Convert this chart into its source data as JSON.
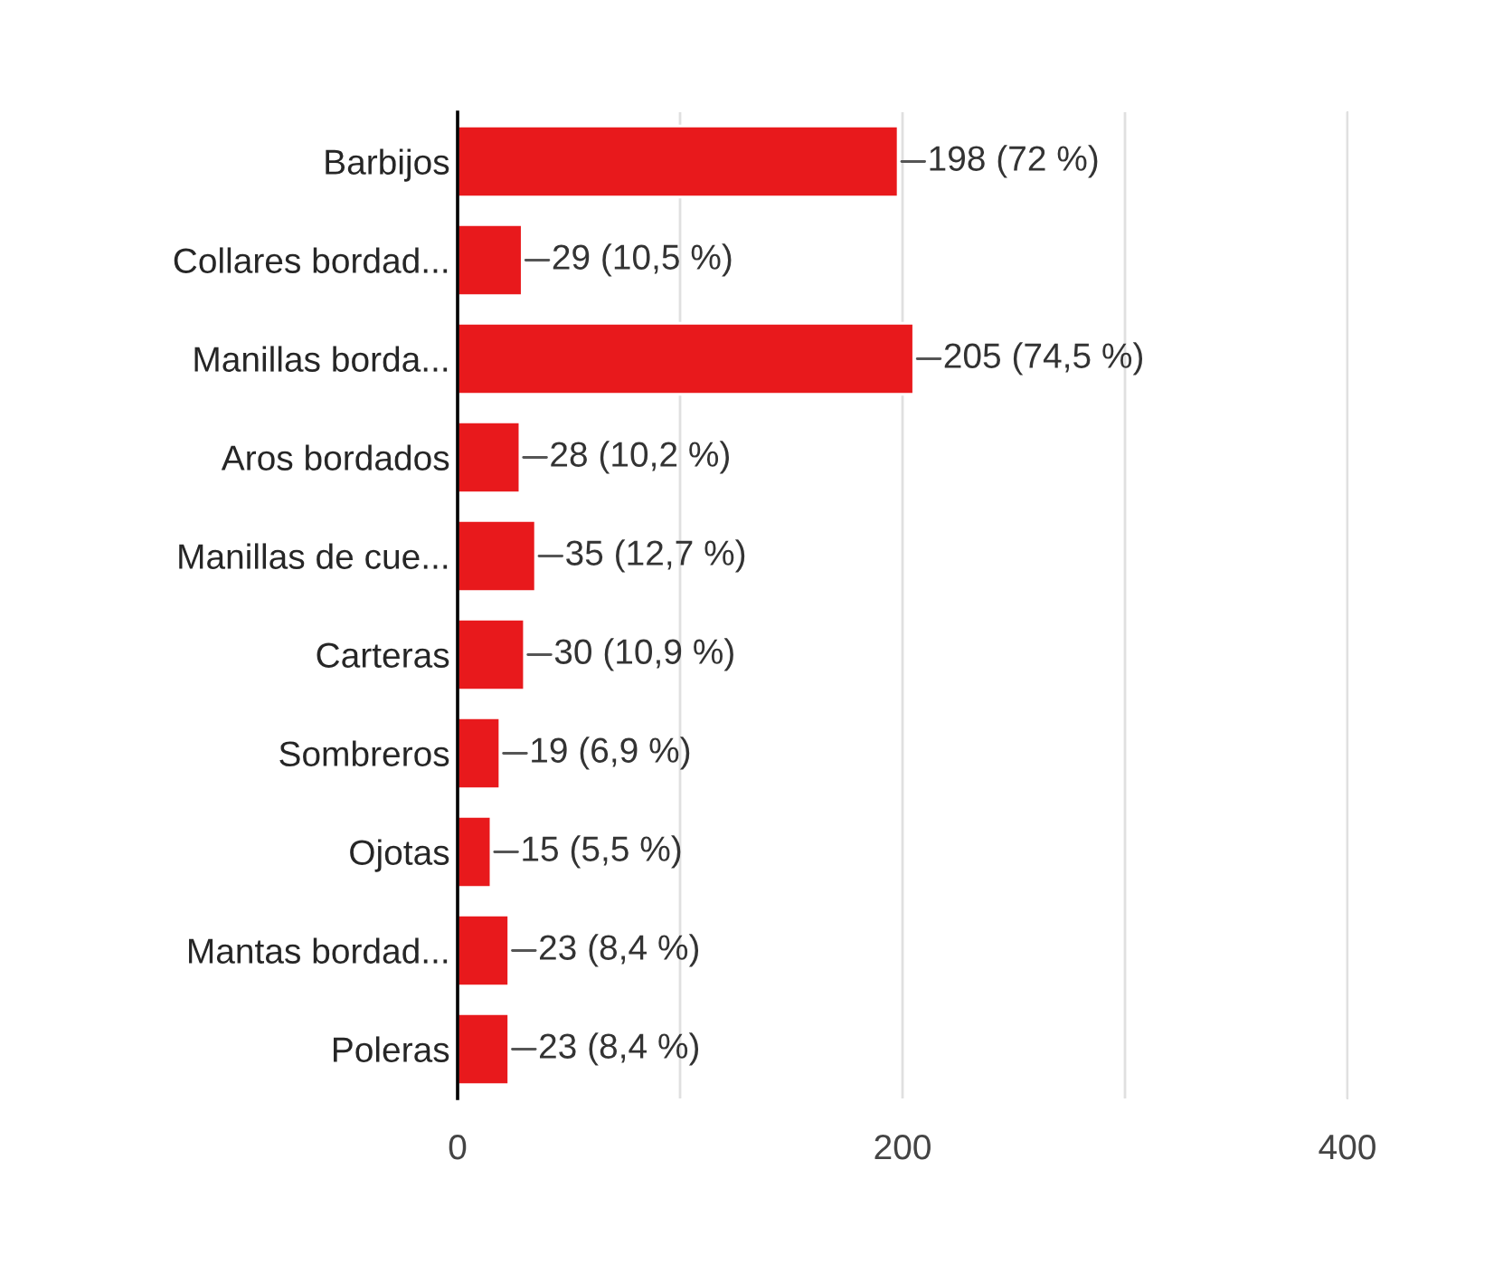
{
  "chart_data": {
    "type": "bar",
    "orientation": "horizontal",
    "categories": [
      "Barbijos",
      "Collares bordad...",
      "Manillas borda...",
      "Aros bordados",
      "Manillas de cue...",
      "Carteras",
      "Sombreros",
      "Ojotas",
      "Mantas bordad...",
      "Poleras"
    ],
    "values": [
      198,
      29,
      205,
      28,
      35,
      30,
      19,
      15,
      23,
      23
    ],
    "value_labels": [
      "198 (72 %)",
      "29 (10,5 %)",
      "205 (74,5 %)",
      "28 (10,2 %)",
      "35 (12,7 %)",
      "30 (10,9 %)",
      "19 (6,9 %)",
      "15 (5,5 %)",
      "23 (8,4 %)",
      "23 (8,4 %)"
    ],
    "color": "#e8191c",
    "xlim": [
      0,
      400
    ],
    "xticks": [
      0,
      {
        "value": 100,
        "label": null
      },
      200,
      {
        "value": 300,
        "label": null
      },
      400
    ],
    "grid": "x",
    "legend": false
  }
}
